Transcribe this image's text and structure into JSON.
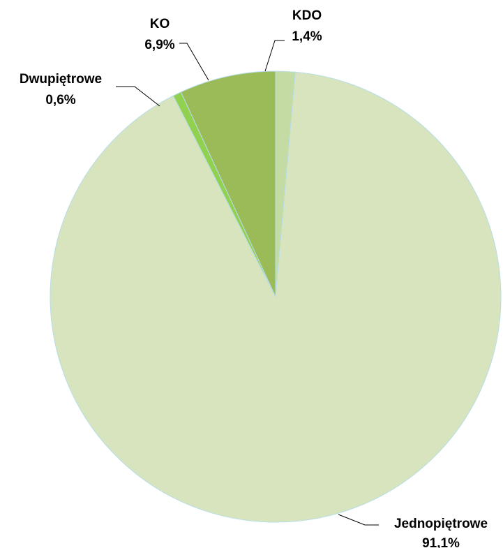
{
  "chart_data": {
    "type": "pie",
    "title": "",
    "slices": [
      {
        "name": "KDO",
        "value": 1.4,
        "label_value": "1,4%",
        "color": "#c4dca4"
      },
      {
        "name": "Jednopiętrowe",
        "value": 91.1,
        "label_value": "91,1%",
        "color": "#d7e4bd"
      },
      {
        "name": "Dwupiętrowe",
        "value": 0.6,
        "label_value": "0,6%",
        "color": "#92d050"
      },
      {
        "name": "KO",
        "value": 6.9,
        "label_value": "6,9%",
        "color": "#9bbb59"
      }
    ],
    "start_angle": "12 o'clock",
    "direction": "clockwise",
    "legend": "none",
    "data_labels": "outside with leader lines"
  }
}
